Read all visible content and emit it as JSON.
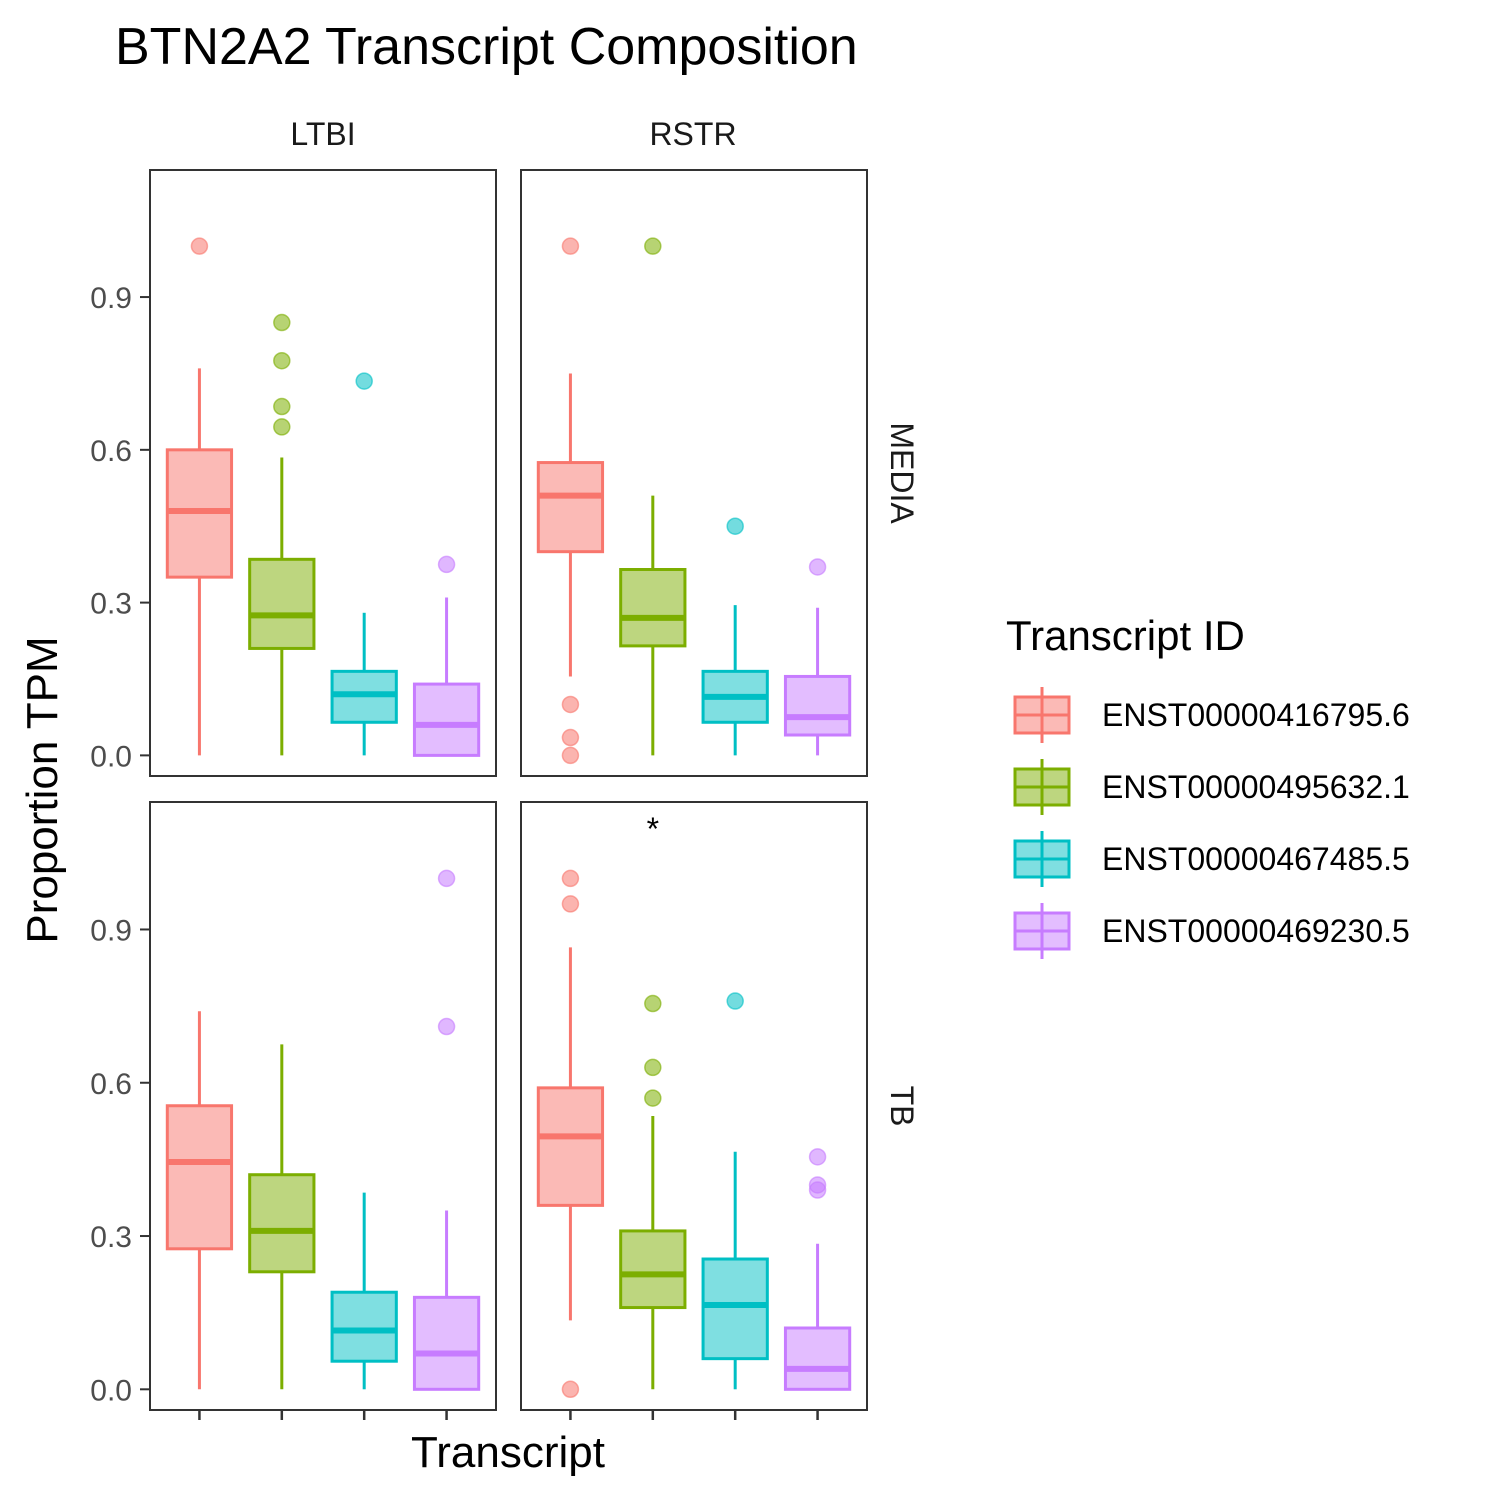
{
  "chart_data": {
    "type": "boxplot",
    "title": "BTN2A2 Transcript Composition",
    "xlabel": "Transcript",
    "ylabel": "Proportion TPM",
    "ylim": [
      0.0,
      1.0
    ],
    "yticks": [
      0.0,
      0.3,
      0.6,
      0.9
    ],
    "ytick_labels": [
      "0.0",
      "0.3",
      "0.6",
      "0.9"
    ],
    "facet_columns": [
      "LTBI",
      "RSTR"
    ],
    "facet_rows": [
      "MEDIA",
      "TB"
    ],
    "legend": {
      "title": "Transcript ID",
      "position": "right",
      "entries": [
        "ENST00000416795.6",
        "ENST00000495632.1",
        "ENST00000467485.5",
        "ENST00000469230.5"
      ]
    },
    "colors": [
      "#F8766D",
      "#7CAE00",
      "#00BFC4",
      "#C77CFF"
    ],
    "series_note": "boxes ordered by transcript: ENST00000416795.6, ENST00000495632.1, ENST00000467485.5, ENST00000469230.5",
    "panels": [
      {
        "column": "LTBI",
        "row": "MEDIA",
        "annotation": "",
        "boxes": [
          {
            "transcript": "ENST00000416795.6",
            "whisker_low": 0.0,
            "q1": 0.35,
            "median": 0.48,
            "q3": 0.6,
            "whisker_high": 0.76,
            "outliers": [
              1.0
            ]
          },
          {
            "transcript": "ENST00000495632.1",
            "whisker_low": 0.0,
            "q1": 0.21,
            "median": 0.275,
            "q3": 0.385,
            "whisker_high": 0.585,
            "outliers": [
              0.85,
              0.775,
              0.685,
              0.645
            ]
          },
          {
            "transcript": "ENST00000467485.5",
            "whisker_low": 0.0,
            "q1": 0.065,
            "median": 0.12,
            "q3": 0.165,
            "whisker_high": 0.28,
            "outliers": [
              0.735
            ]
          },
          {
            "transcript": "ENST00000469230.5",
            "whisker_low": 0.0,
            "q1": 0.0,
            "median": 0.06,
            "q3": 0.14,
            "whisker_high": 0.31,
            "outliers": [
              0.375
            ]
          }
        ]
      },
      {
        "column": "RSTR",
        "row": "MEDIA",
        "annotation": "",
        "boxes": [
          {
            "transcript": "ENST00000416795.6",
            "whisker_low": 0.155,
            "q1": 0.4,
            "median": 0.51,
            "q3": 0.575,
            "whisker_high": 0.75,
            "outliers": [
              1.0,
              0.1,
              0.035,
              0.0
            ]
          },
          {
            "transcript": "ENST00000495632.1",
            "whisker_low": 0.0,
            "q1": 0.215,
            "median": 0.27,
            "q3": 0.365,
            "whisker_high": 0.51,
            "outliers": [
              1.0
            ]
          },
          {
            "transcript": "ENST00000467485.5",
            "whisker_low": 0.0,
            "q1": 0.065,
            "median": 0.115,
            "q3": 0.165,
            "whisker_high": 0.295,
            "outliers": [
              0.45
            ]
          },
          {
            "transcript": "ENST00000469230.5",
            "whisker_low": 0.0,
            "q1": 0.04,
            "median": 0.075,
            "q3": 0.155,
            "whisker_high": 0.29,
            "outliers": [
              0.37
            ]
          }
        ]
      },
      {
        "column": "LTBI",
        "row": "TB",
        "annotation": "",
        "boxes": [
          {
            "transcript": "ENST00000416795.6",
            "whisker_low": 0.0,
            "q1": 0.275,
            "median": 0.445,
            "q3": 0.555,
            "whisker_high": 0.74,
            "outliers": []
          },
          {
            "transcript": "ENST00000495632.1",
            "whisker_low": 0.0,
            "q1": 0.23,
            "median": 0.31,
            "q3": 0.42,
            "whisker_high": 0.675,
            "outliers": []
          },
          {
            "transcript": "ENST00000467485.5",
            "whisker_low": 0.0,
            "q1": 0.055,
            "median": 0.115,
            "q3": 0.19,
            "whisker_high": 0.385,
            "outliers": []
          },
          {
            "transcript": "ENST00000469230.5",
            "whisker_low": 0.0,
            "q1": 0.0,
            "median": 0.07,
            "q3": 0.18,
            "whisker_high": 0.35,
            "outliers": [
              1.0,
              0.71
            ]
          }
        ]
      },
      {
        "column": "RSTR",
        "row": "TB",
        "annotation": "*",
        "boxes": [
          {
            "transcript": "ENST00000416795.6",
            "whisker_low": 0.135,
            "q1": 0.36,
            "median": 0.495,
            "q3": 0.59,
            "whisker_high": 0.865,
            "outliers": [
              1.0,
              0.95,
              0.0
            ]
          },
          {
            "transcript": "ENST00000495632.1",
            "whisker_low": 0.0,
            "q1": 0.16,
            "median": 0.225,
            "q3": 0.31,
            "whisker_high": 0.535,
            "outliers": [
              0.755,
              0.63,
              0.57
            ]
          },
          {
            "transcript": "ENST00000467485.5",
            "whisker_low": 0.0,
            "q1": 0.06,
            "median": 0.165,
            "q3": 0.255,
            "whisker_high": 0.465,
            "outliers": [
              0.76
            ]
          },
          {
            "transcript": "ENST00000469230.5",
            "whisker_low": 0.0,
            "q1": 0.0,
            "median": 0.04,
            "q3": 0.12,
            "whisker_high": 0.285,
            "outliers": [
              0.455,
              0.4,
              0.39
            ]
          }
        ]
      }
    ]
  }
}
